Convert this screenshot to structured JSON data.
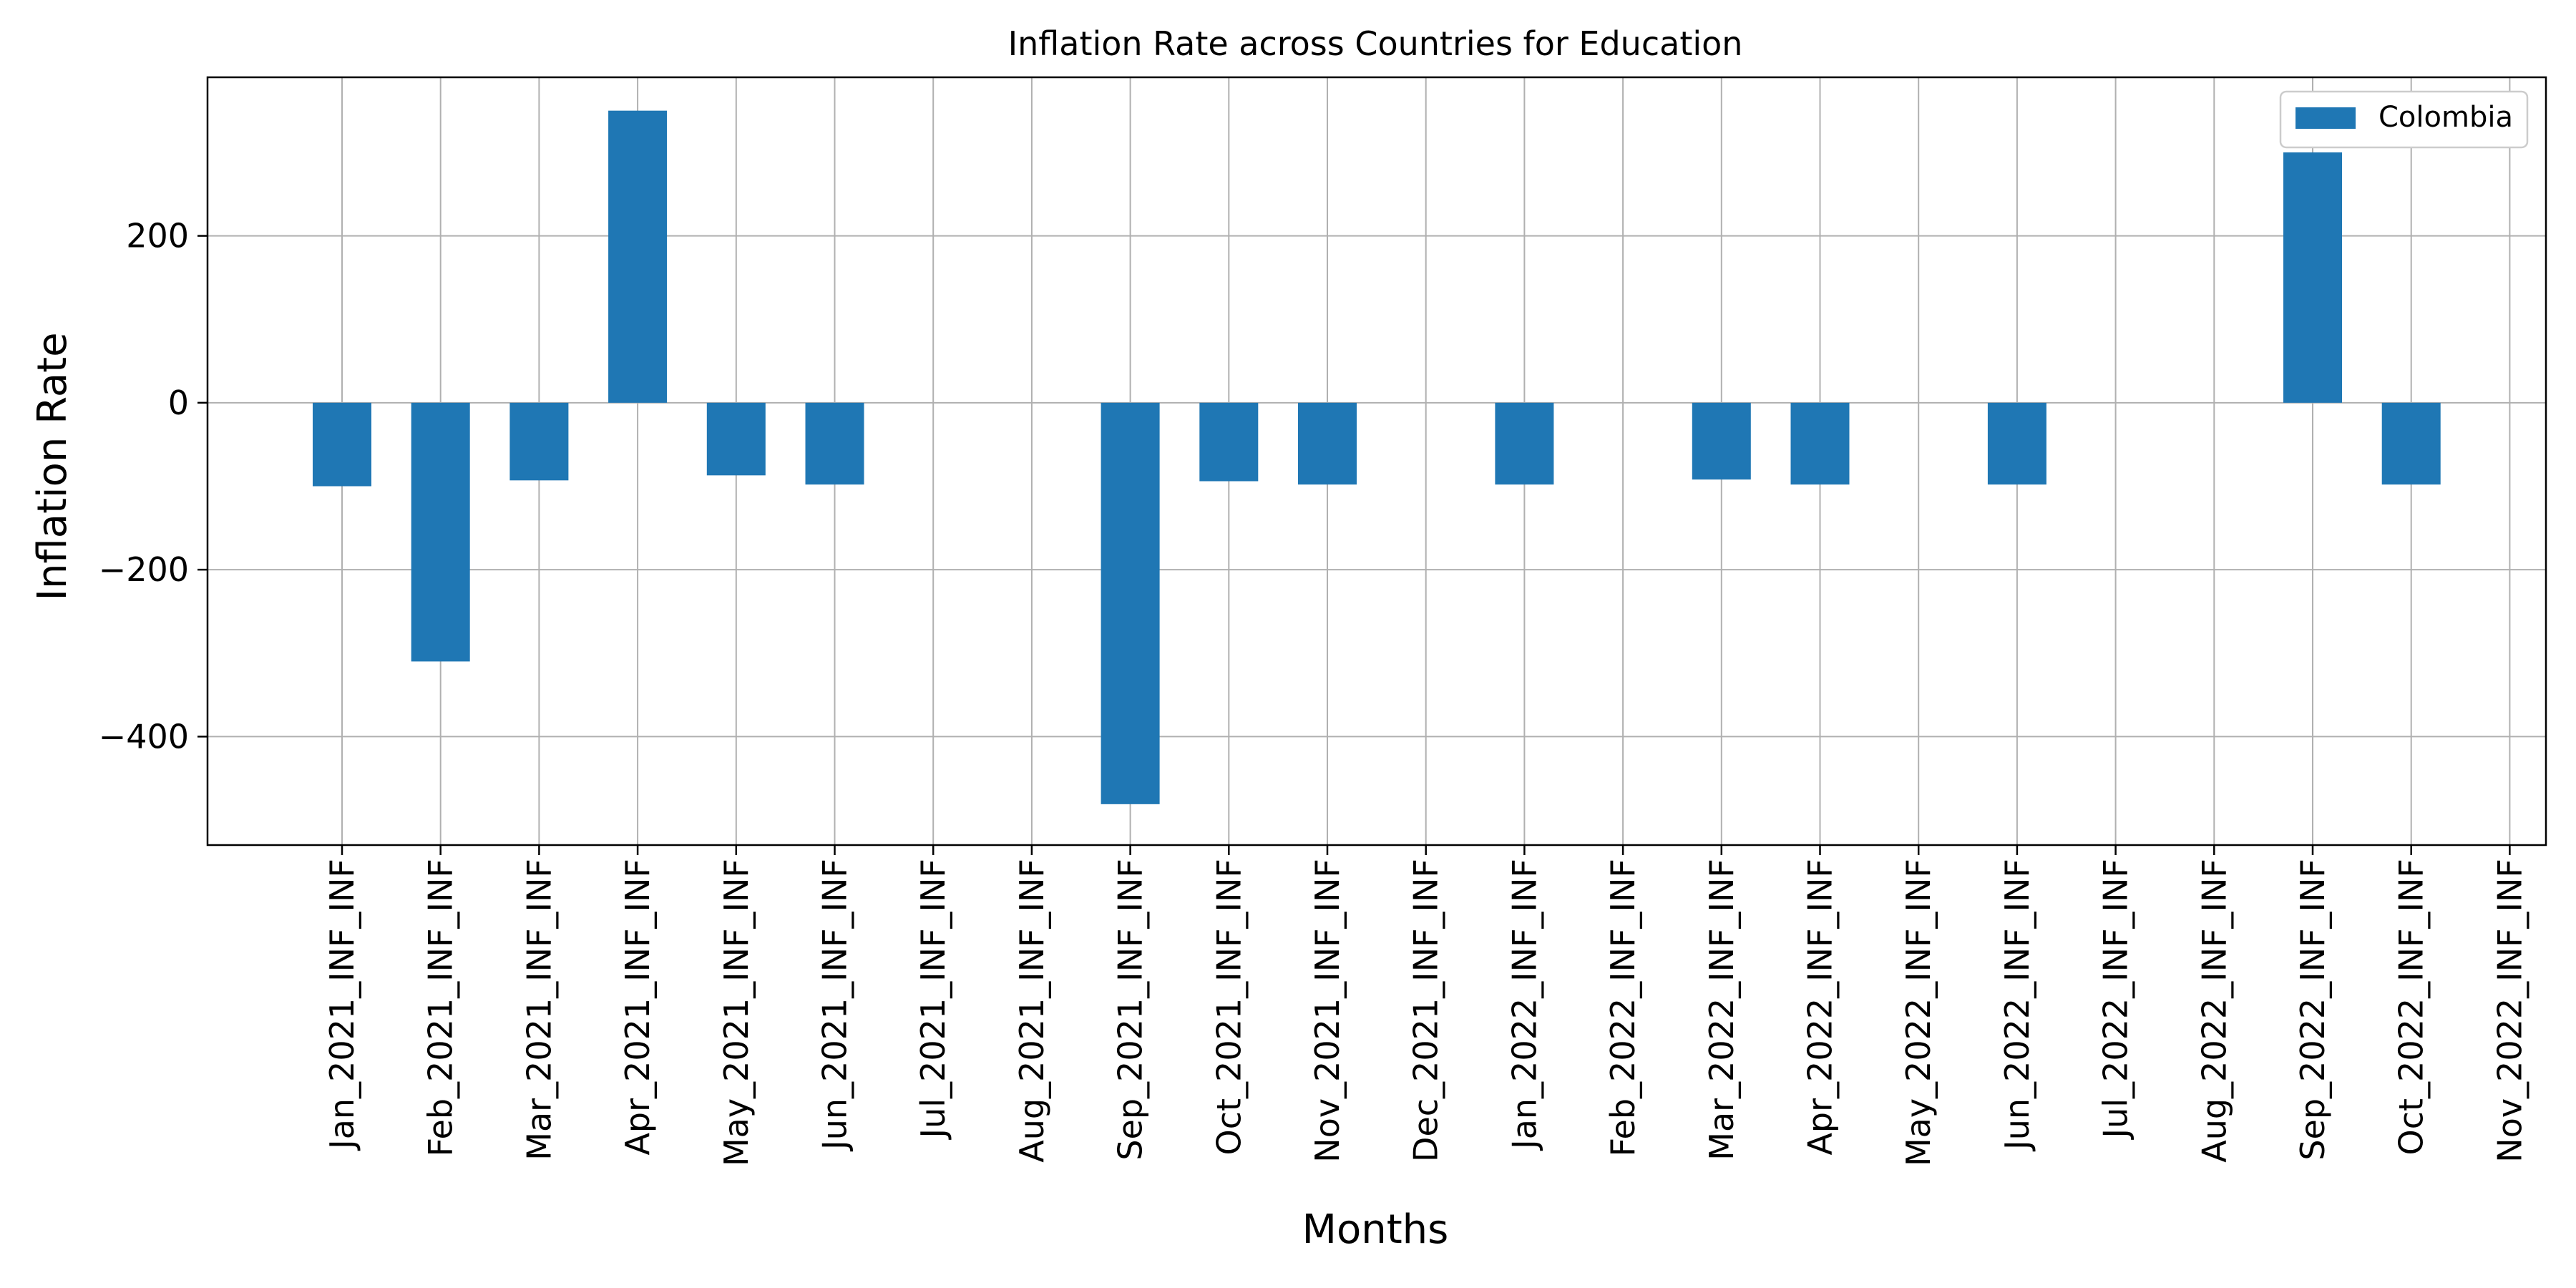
{
  "chart_data": {
    "type": "bar",
    "title": "Inflation Rate across Countries for Education",
    "xlabel": "Months",
    "ylabel": "Inflation Rate",
    "categories": [
      "Jan_2021_INF_INF",
      "Feb_2021_INF_INF",
      "Mar_2021_INF_INF",
      "Apr_2021_INF_INF",
      "May_2021_INF_INF",
      "Jun_2021_INF_INF",
      "Jul_2021_INF_INF",
      "Aug_2021_INF_INF",
      "Sep_2021_INF_INF",
      "Oct_2021_INF_INF",
      "Nov_2021_INF_INF",
      "Dec_2021_INF_INF",
      "Jan_2022_INF_INF",
      "Feb_2022_INF_INF",
      "Mar_2022_INF_INF",
      "Apr_2022_INF_INF",
      "May_2022_INF_INF",
      "Jun_2022_INF_INF",
      "Jul_2022_INF_INF",
      "Aug_2022_INF_INF",
      "Sep_2022_INF_INF",
      "Oct_2022_INF_INF",
      "Nov_2022_INF_INF"
    ],
    "series": [
      {
        "name": "Colombia",
        "color": "#1f77b4",
        "values": [
          -100,
          -310,
          -93,
          350,
          -87,
          -98,
          null,
          null,
          -481,
          -94,
          -98,
          null,
          -98,
          null,
          -92,
          -98,
          null,
          -98,
          null,
          null,
          300,
          -98,
          null
        ]
      }
    ],
    "yticks": [
      -400,
      -200,
      0,
      200
    ],
    "ylim": [
      -530,
      390
    ],
    "grid": true,
    "legend_position": "top-right"
  }
}
